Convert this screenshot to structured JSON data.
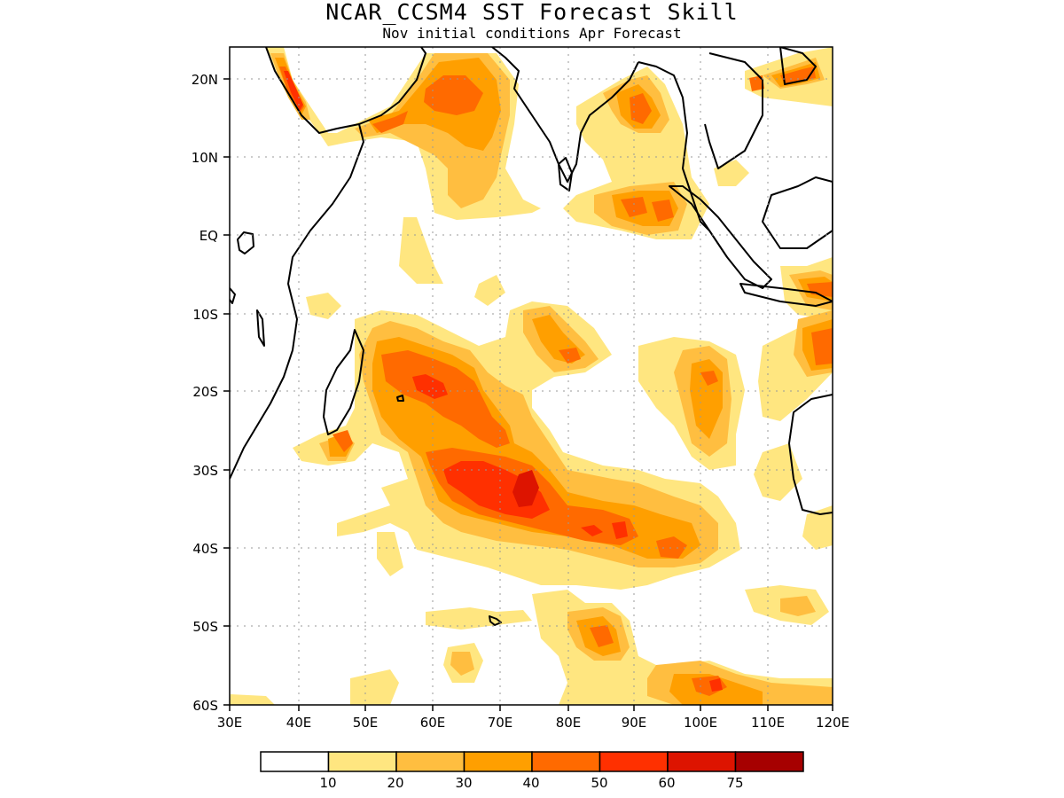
{
  "title": "NCAR_CCSM4 SST Forecast Skill",
  "subtitle": "Nov initial conditions  Apr Forecast",
  "lat_ticks": [
    "20N",
    "10N",
    "EQ",
    "10S",
    "20S",
    "30S",
    "40S",
    "50S",
    "60S"
  ],
  "lon_ticks": [
    "30E",
    "40E",
    "50E",
    "60E",
    "70E",
    "80E",
    "90E",
    "100E",
    "110E",
    "120E"
  ],
  "colorbar": {
    "labels": [
      "10",
      "20",
      "30",
      "40",
      "50",
      "60",
      "75"
    ],
    "colors": [
      "#ffffff",
      "#ffe680",
      "#ffbe40",
      "#ff9f00",
      "#ff6a00",
      "#ff3000",
      "#dd1400",
      "#a60000"
    ]
  }
}
